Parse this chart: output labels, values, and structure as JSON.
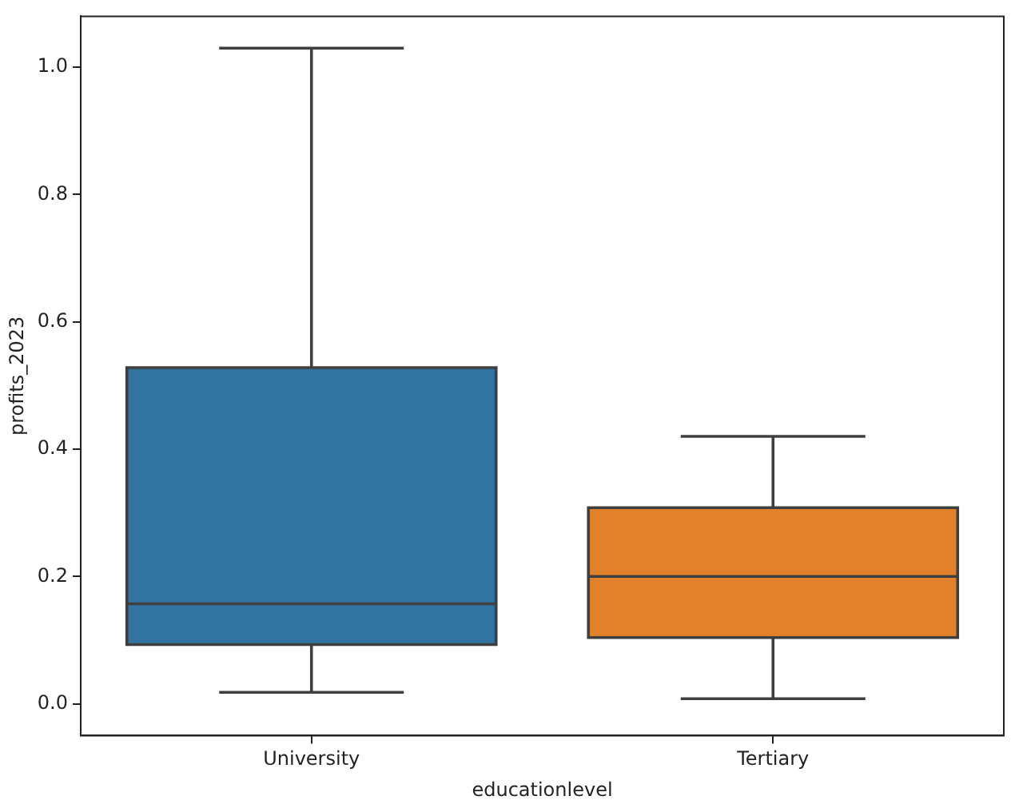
{
  "chart_data": {
    "type": "box",
    "xlabel": "educationlevel",
    "ylabel": "profits_2023",
    "categories": [
      "University",
      "Tertiary"
    ],
    "colors": [
      "#3274a1",
      "#e1812c"
    ],
    "boxes": [
      {
        "low": 0.018,
        "q1": 0.093,
        "median": 0.157,
        "q3": 0.528,
        "high": 1.03
      },
      {
        "low": 0.008,
        "q1": 0.104,
        "median": 0.2,
        "q3": 0.308,
        "high": 0.42
      }
    ],
    "ylim": [
      -0.05,
      1.08
    ],
    "yticks": [
      {
        "value": 0,
        "label": "0.0"
      },
      {
        "value": 0.2,
        "label": "0.2"
      },
      {
        "value": 0.4,
        "label": "0.4"
      },
      {
        "value": 0.6,
        "label": "0.6"
      },
      {
        "value": 0.8,
        "label": "0.8"
      },
      {
        "value": 1,
        "label": "1.0"
      }
    ],
    "grid": false,
    "legend": false
  }
}
